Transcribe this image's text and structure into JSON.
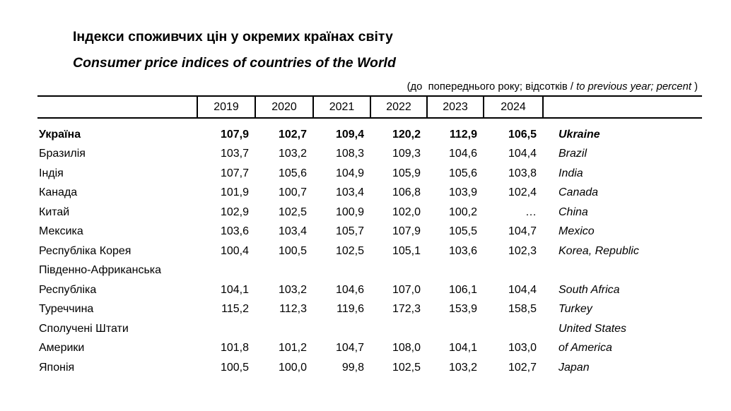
{
  "title": {
    "uk": "Індекси споживчих цін у окремих країнах світу",
    "en": "Consumer price indices of countries of the World"
  },
  "note": {
    "prefix": "(до  попереднього року; відсотків / ",
    "italic": "to previous year; percent",
    "suffix": " )"
  },
  "table": {
    "years": [
      "2019",
      "2020",
      "2021",
      "2022",
      "2023",
      "2024"
    ],
    "rows": [
      {
        "uk": "Україна",
        "en": "Ukraine",
        "values": [
          "107,9",
          "102,7",
          "109,4",
          "120,2",
          "112,9",
          "106,5"
        ]
      },
      {
        "uk": "Бразилія",
        "en": "Brazil",
        "values": [
          "103,7",
          "103,2",
          "108,3",
          "109,3",
          "104,6",
          "104,4"
        ]
      },
      {
        "uk": "Індія",
        "en": "India",
        "values": [
          "107,7",
          "105,6",
          "104,9",
          "105,9",
          "105,6",
          "103,8"
        ]
      },
      {
        "uk": "Канада",
        "en": "Canada",
        "values": [
          "101,9",
          "100,7",
          "103,4",
          "106,8",
          "103,9",
          "102,4"
        ]
      },
      {
        "uk": "Китай",
        "en": "China",
        "values": [
          "102,9",
          "102,5",
          "100,9",
          "102,0",
          "100,2",
          "…"
        ]
      },
      {
        "uk": "Мексика",
        "en": "Mexico",
        "values": [
          "103,6",
          "103,4",
          "105,7",
          "107,9",
          "105,5",
          "104,7"
        ]
      },
      {
        "uk": "Республіка Корея",
        "en": "Korea, Republic",
        "values": [
          "100,4",
          "100,5",
          "102,5",
          "105,1",
          "103,6",
          "102,3"
        ]
      },
      {
        "uk": "Південно-Африканська",
        "en": "",
        "values": [
          "",
          "",
          "",
          "",
          "",
          ""
        ]
      },
      {
        "uk": "Республіка",
        "en": "South Africa",
        "values": [
          "104,1",
          "103,2",
          "104,6",
          "107,0",
          "106,1",
          "104,4"
        ]
      },
      {
        "uk": "Туреччина",
        "en": "Turkey",
        "values": [
          "115,2",
          "112,3",
          "119,6",
          "172,3",
          "153,9",
          "158,5"
        ]
      },
      {
        "uk": "Сполучені Штати",
        "en": "United States",
        "values": [
          "",
          "",
          "",
          "",
          "",
          ""
        ]
      },
      {
        "uk": "Америки",
        "en": "of America",
        "values": [
          "101,8",
          "101,2",
          "104,7",
          "108,0",
          "104,1",
          "103,0"
        ]
      },
      {
        "uk": "Японія",
        "en": "Japan",
        "values": [
          "100,5",
          "100,0",
          "99,8",
          "102,5",
          "103,2",
          "102,7"
        ]
      }
    ]
  }
}
